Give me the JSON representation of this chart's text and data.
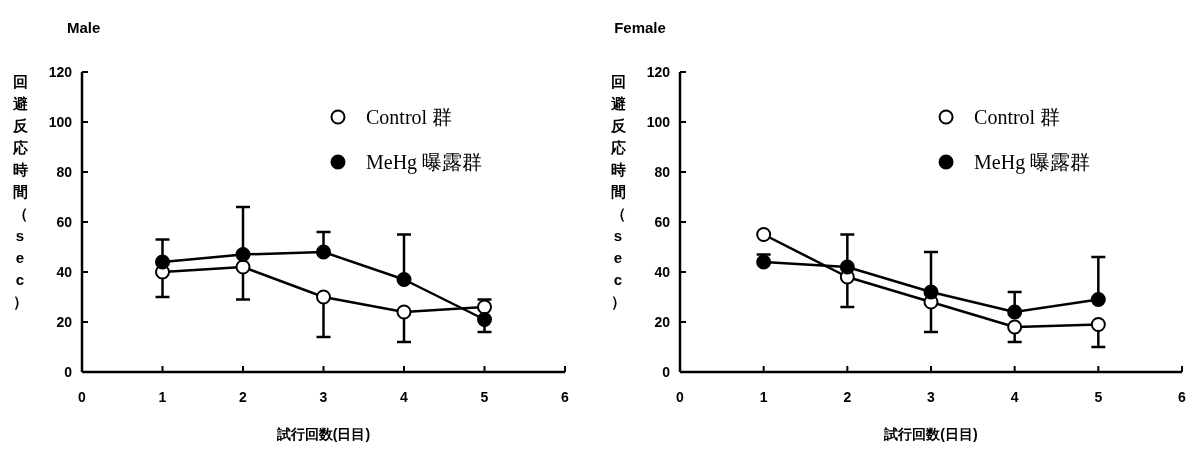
{
  "chart_data": [
    {
      "type": "line",
      "title": "Male",
      "xlabel": "試行回数(日目)",
      "ylabel": "回避反応時間（sec）",
      "x": [
        1,
        2,
        3,
        4,
        5
      ],
      "xlim": [
        0,
        6
      ],
      "xticks": [
        0,
        1,
        2,
        3,
        4,
        5,
        6
      ],
      "ylim": [
        0,
        120
      ],
      "yticks": [
        0,
        20,
        40,
        60,
        80,
        100,
        120
      ],
      "marker": "circle",
      "legend": "top right",
      "grid": false,
      "series": [
        {
          "name": "Control 群",
          "color": "#ffffff",
          "values": [
            40,
            42,
            30,
            24,
            26
          ],
          "errors": [
            [
              30,
              40
            ],
            [
              29,
              42
            ],
            [
              14,
              30
            ],
            [
              12,
              24
            ],
            [
              26,
              29
            ]
          ]
        },
        {
          "name": "MeHg 曝露群",
          "color": "#000000",
          "values": [
            44,
            47,
            48,
            37,
            21
          ],
          "errors": [
            [
              44,
              53
            ],
            [
              47,
              66
            ],
            [
              48,
              56
            ],
            [
              37,
              55
            ],
            [
              16,
              21
            ]
          ]
        }
      ]
    },
    {
      "type": "line",
      "title": "Female",
      "xlabel": "試行回数(日目)",
      "ylabel": "回避反応時間（sec）",
      "x": [
        1,
        2,
        3,
        4,
        5
      ],
      "xlim": [
        0,
        6
      ],
      "xticks": [
        0,
        1,
        2,
        3,
        4,
        5,
        6
      ],
      "ylim": [
        0,
        120
      ],
      "yticks": [
        0,
        20,
        40,
        60,
        80,
        100,
        120
      ],
      "marker": "circle",
      "legend": "top right",
      "grid": false,
      "series": [
        {
          "name": "Control 群",
          "color": "#ffffff",
          "values": [
            55,
            38,
            28,
            18,
            19
          ],
          "errors": [
            null,
            [
              26,
              38
            ],
            [
              16,
              28
            ],
            [
              12,
              18
            ],
            [
              10,
              19
            ]
          ]
        },
        {
          "name": "MeHg 曝露群",
          "color": "#000000",
          "values": [
            44,
            42,
            32,
            24,
            29
          ],
          "errors": [
            [
              44,
              47
            ],
            [
              42,
              55
            ],
            [
              32,
              48
            ],
            [
              24,
              32
            ],
            [
              29,
              46
            ]
          ]
        }
      ]
    }
  ]
}
